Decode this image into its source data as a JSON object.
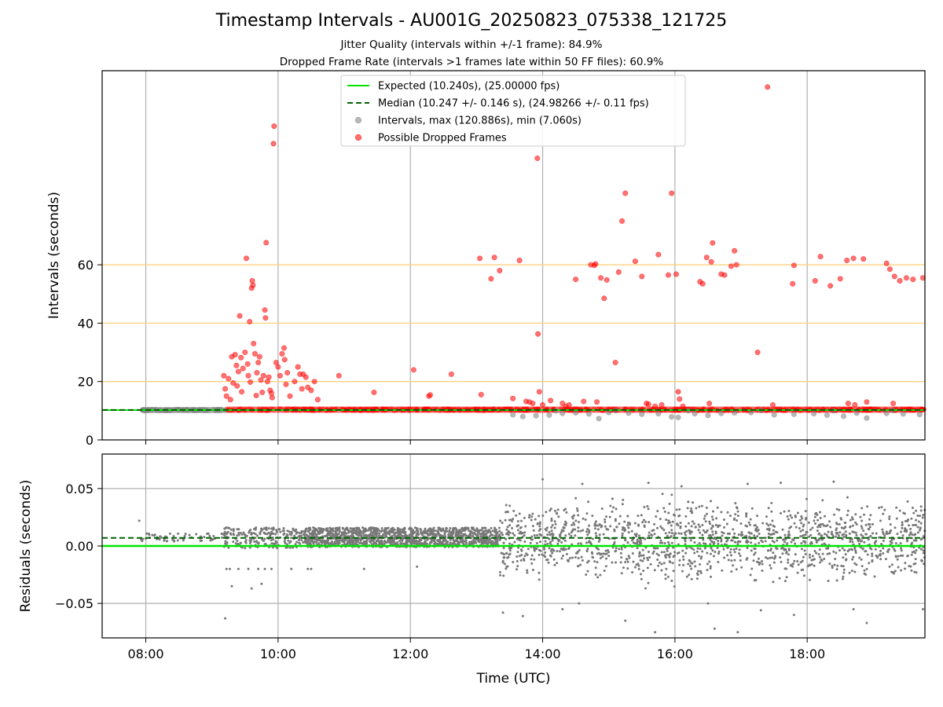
{
  "chart_data": [
    {
      "type": "scatter",
      "title": "Timestamp Intervals - AU001G_20250823_075338_121725",
      "subtitle_1": "Jitter Quality (intervals within +/-1 frame): 84.9%",
      "subtitle_2": "Dropped Frame Rate (intervals >1 frames late within 50 FF files): 60.9%",
      "ylabel": "Intervals (seconds)",
      "xlim_hours": [
        7.34,
        19.78
      ],
      "ylim": [
        0,
        126.5
      ],
      "yticks": [
        0,
        20,
        40,
        60
      ],
      "ytick_labels": [
        "0",
        "20",
        "40",
        "60"
      ],
      "reference_lines": [
        20,
        40,
        60
      ],
      "reference_line_color": "#ffd27f",
      "grid": "vertical",
      "legend_position": "top-center",
      "legend": [
        {
          "label": "Expected (10.240s), (25.00000 fps)",
          "kind": "solid-line",
          "color": "#00e600"
        },
        {
          "label": "Median (10.247 +/- 0.146 s), (24.98266 +/- 0.11 fps)",
          "kind": "dashed-line",
          "color": "#006400"
        },
        {
          "label": "Intervals, max (120.886s), min (7.060s)",
          "kind": "marker",
          "color": "#808080"
        },
        {
          "label": "Possible Dropped Frames",
          "kind": "marker",
          "color": "#ff0000"
        }
      ],
      "expected_interval": 10.24,
      "median_interval": 10.247,
      "baseline_dense_segments": [
        {
          "name": "intervals",
          "start": 7.92,
          "end": 9.2,
          "value": 10.24,
          "color": "#808080"
        },
        {
          "name": "possible-dropped",
          "start": 9.2,
          "end": 19.78,
          "value": 10.35,
          "color": "#ff0000"
        }
      ],
      "series": [
        {
          "name": "Intervals, max (120.886s), min (7.060s)",
          "color": "#808080",
          "points": [
            [
              13.55,
              8.6
            ],
            [
              13.7,
              8.0
            ],
            [
              13.9,
              8.3
            ],
            [
              14.1,
              8.5
            ],
            [
              14.3,
              9.1
            ],
            [
              14.5,
              9.3
            ],
            [
              14.7,
              8.9
            ],
            [
              14.85,
              7.3
            ],
            [
              15.0,
              9.4
            ],
            [
              15.3,
              9.2
            ],
            [
              15.5,
              8.8
            ],
            [
              15.75,
              9.0
            ],
            [
              15.95,
              7.9
            ],
            [
              16.05,
              7.7
            ],
            [
              16.3,
              9.0
            ],
            [
              16.5,
              8.4
            ],
            [
              16.7,
              9.1
            ],
            [
              16.9,
              9.3
            ],
            [
              17.15,
              9.4
            ],
            [
              17.5,
              8.6
            ],
            [
              17.8,
              8.8
            ],
            [
              18.1,
              9.0
            ],
            [
              18.3,
              8.5
            ],
            [
              18.55,
              8.1
            ],
            [
              18.75,
              9.2
            ],
            [
              18.9,
              7.5
            ],
            [
              19.2,
              9.1
            ],
            [
              19.45,
              8.9
            ],
            [
              19.7,
              8.7
            ],
            [
              14.2,
              10.0
            ],
            [
              15.1,
              10.1
            ],
            [
              16.2,
              10.0
            ],
            [
              17.3,
              10.1
            ],
            [
              18.4,
              10.0
            ],
            [
              19.3,
              10.1
            ]
          ]
        },
        {
          "name": "Possible Dropped Frames",
          "color": "#ff0000",
          "points": [
            [
              9.18,
              22.0
            ],
            [
              9.2,
              17.5
            ],
            [
              9.22,
              15.0
            ],
            [
              9.25,
              21.0
            ],
            [
              9.28,
              13.8
            ],
            [
              9.3,
              28.5
            ],
            [
              9.32,
              19.5
            ],
            [
              9.35,
              29.2
            ],
            [
              9.37,
              25.5
            ],
            [
              9.38,
              18.5
            ],
            [
              9.4,
              23.4
            ],
            [
              9.42,
              42.5
            ],
            [
              9.44,
              28.2
            ],
            [
              9.45,
              16.5
            ],
            [
              9.47,
              24.5
            ],
            [
              9.5,
              30.0
            ],
            [
              9.52,
              62.2
            ],
            [
              9.54,
              26.0
            ],
            [
              9.55,
              22.0
            ],
            [
              9.57,
              40.5
            ],
            [
              9.58,
              19.8
            ],
            [
              9.6,
              52.0
            ],
            [
              9.61,
              54.5
            ],
            [
              9.62,
              53.0
            ],
            [
              9.63,
              33.0
            ],
            [
              9.65,
              29.5
            ],
            [
              9.67,
              15.2
            ],
            [
              9.68,
              23.0
            ],
            [
              9.7,
              26.5
            ],
            [
              9.72,
              28.5
            ],
            [
              9.74,
              20.5
            ],
            [
              9.76,
              16.3
            ],
            [
              9.78,
              22.0
            ],
            [
              9.8,
              44.5
            ],
            [
              9.81,
              41.8
            ],
            [
              9.82,
              67.6
            ],
            [
              9.84,
              20.0
            ],
            [
              9.86,
              21.5
            ],
            [
              9.88,
              17.0
            ],
            [
              9.9,
              16.0
            ],
            [
              9.91,
              14.5
            ],
            [
              9.93,
              101.5
            ],
            [
              9.94,
              107.5
            ],
            [
              9.97,
              26.5
            ],
            [
              10.0,
              25.0
            ],
            [
              10.03,
              22.0
            ],
            [
              10.06,
              29.5
            ],
            [
              10.09,
              31.5
            ],
            [
              10.1,
              27.5
            ],
            [
              10.12,
              19.0
            ],
            [
              10.14,
              23.0
            ],
            [
              10.18,
              15.0
            ],
            [
              10.25,
              20.0
            ],
            [
              10.3,
              25.0
            ],
            [
              10.33,
              22.5
            ],
            [
              10.36,
              17.5
            ],
            [
              10.38,
              22.5
            ],
            [
              10.42,
              21.5
            ],
            [
              10.45,
              18.0
            ],
            [
              10.5,
              17.0
            ],
            [
              10.55,
              20.0
            ],
            [
              10.6,
              13.8
            ],
            [
              10.92,
              22.0
            ],
            [
              11.45,
              16.3
            ],
            [
              12.05,
              24.0
            ],
            [
              12.28,
              15.0
            ],
            [
              12.3,
              15.4
            ],
            [
              12.62,
              22.5
            ],
            [
              13.05,
              62.2
            ],
            [
              13.07,
              15.5
            ],
            [
              13.22,
              55.2
            ],
            [
              13.27,
              62.5
            ],
            [
              13.35,
              58.0
            ],
            [
              13.55,
              14.2
            ],
            [
              13.65,
              61.5
            ],
            [
              13.75,
              13.2
            ],
            [
              13.8,
              13.0
            ],
            [
              13.85,
              12.5
            ],
            [
              13.92,
              96.5
            ],
            [
              13.93,
              36.3
            ],
            [
              13.95,
              16.5
            ],
            [
              14.0,
              12.0
            ],
            [
              14.12,
              13.5
            ],
            [
              14.3,
              12.5
            ],
            [
              14.35,
              11.5
            ],
            [
              14.4,
              12.0
            ],
            [
              14.5,
              55.0
            ],
            [
              14.62,
              13.2
            ],
            [
              14.73,
              60.0
            ],
            [
              14.78,
              59.8
            ],
            [
              14.8,
              60.3
            ],
            [
              14.82,
              13.0
            ],
            [
              14.88,
              55.5
            ],
            [
              14.93,
              48.5
            ],
            [
              14.97,
              54.8
            ],
            [
              15.1,
              26.5
            ],
            [
              15.15,
              57.5
            ],
            [
              15.2,
              75.0
            ],
            [
              15.25,
              84.5
            ],
            [
              15.4,
              61.2
            ],
            [
              15.5,
              56.0
            ],
            [
              15.57,
              12.5
            ],
            [
              15.6,
              12.2
            ],
            [
              15.7,
              11.5
            ],
            [
              15.75,
              63.5
            ],
            [
              15.8,
              12.0
            ],
            [
              15.9,
              56.5
            ],
            [
              15.95,
              84.5
            ],
            [
              16.02,
              56.8
            ],
            [
              16.05,
              16.5
            ],
            [
              16.07,
              14.0
            ],
            [
              16.12,
              11.5
            ],
            [
              16.38,
              54.2
            ],
            [
              16.42,
              53.5
            ],
            [
              16.48,
              62.5
            ],
            [
              16.52,
              12.5
            ],
            [
              16.55,
              61.0
            ],
            [
              16.57,
              67.5
            ],
            [
              16.7,
              56.8
            ],
            [
              16.75,
              56.5
            ],
            [
              16.85,
              59.5
            ],
            [
              16.9,
              64.8
            ],
            [
              16.93,
              60.0
            ],
            [
              17.25,
              30.0
            ],
            [
              17.4,
              120.9
            ],
            [
              17.48,
              12.0
            ],
            [
              17.78,
              53.5
            ],
            [
              17.8,
              59.8
            ],
            [
              18.12,
              54.5
            ],
            [
              18.2,
              62.8
            ],
            [
              18.35,
              52.8
            ],
            [
              18.5,
              55.2
            ],
            [
              18.6,
              61.5
            ],
            [
              18.62,
              12.5
            ],
            [
              18.7,
              62.2
            ],
            [
              18.72,
              12.0
            ],
            [
              18.85,
              62.0
            ],
            [
              18.9,
              13.0
            ],
            [
              19.2,
              60.5
            ],
            [
              19.25,
              58.5
            ],
            [
              19.32,
              56.0
            ],
            [
              19.4,
              54.5
            ],
            [
              19.5,
              55.5
            ],
            [
              19.6,
              55.0
            ],
            [
              19.75,
              55.5
            ],
            [
              19.3,
              12.5
            ]
          ]
        }
      ]
    },
    {
      "type": "scatter",
      "ylabel": "Residuals (seconds)",
      "xlabel": "Time (UTC)",
      "xlim_hours": [
        7.34,
        19.78
      ],
      "ylim": [
        -0.08,
        0.08
      ],
      "yticks": [
        0.05,
        0.0,
        -0.05
      ],
      "ytick_labels": [
        "0.05",
        "0.00",
        "−0.05"
      ],
      "xticks_hours": [
        8,
        10,
        12,
        14,
        16,
        18
      ],
      "xtick_labels": [
        "08:00",
        "10:00",
        "12:00",
        "14:00",
        "16:00",
        "18:00"
      ],
      "grid": "on",
      "expected_residual": 0.0,
      "median_residual": 0.007,
      "series": [
        {
          "name": "residuals",
          "color": "#787878",
          "regions": [
            {
              "start": 7.92,
              "end": 9.18,
              "band": [
                0.004,
                0.011
              ],
              "density": 60
            },
            {
              "start": 9.18,
              "end": 10.4,
              "band": [
                -0.002,
                0.016
              ],
              "density": 220
            },
            {
              "start": 10.4,
              "end": 13.35,
              "band": [
                -0.001,
                0.016
              ],
              "density": 1400
            },
            {
              "start": 13.35,
              "end": 19.78,
              "band": [
                -0.04,
                0.05
              ],
              "density": 1500
            }
          ],
          "points": [
            [
              7.9,
              0.022
            ],
            [
              9.22,
              -0.02
            ],
            [
              9.2,
              -0.063
            ],
            [
              9.27,
              -0.02
            ],
            [
              9.3,
              -0.035
            ],
            [
              9.4,
              -0.02
            ],
            [
              9.55,
              -0.02
            ],
            [
              9.6,
              -0.037
            ],
            [
              9.7,
              -0.02
            ],
            [
              9.75,
              -0.033
            ],
            [
              9.8,
              -0.02
            ],
            [
              9.9,
              -0.02
            ],
            [
              10.2,
              -0.02
            ],
            [
              10.45,
              -0.02
            ],
            [
              10.5,
              -0.02
            ],
            [
              11.3,
              -0.02
            ],
            [
              12.1,
              -0.018
            ],
            [
              13.4,
              -0.058
            ],
            [
              14.0,
              0.058
            ],
            [
              13.7,
              -0.061
            ],
            [
              14.3,
              -0.055
            ],
            [
              14.55,
              -0.05
            ],
            [
              15.25,
              -0.065
            ],
            [
              15.7,
              -0.075
            ],
            [
              16.5,
              -0.05
            ],
            [
              16.6,
              -0.072
            ],
            [
              16.95,
              -0.075
            ],
            [
              17.3,
              -0.056
            ],
            [
              17.8,
              -0.06
            ],
            [
              18.7,
              -0.055
            ],
            [
              18.9,
              -0.067
            ],
            [
              19.75,
              -0.055
            ],
            [
              14.6,
              0.054
            ],
            [
              15.6,
              0.055
            ],
            [
              16.1,
              0.052
            ],
            [
              17.1,
              0.054
            ],
            [
              17.6,
              0.055
            ],
            [
              18.4,
              0.056
            ]
          ]
        }
      ]
    }
  ]
}
